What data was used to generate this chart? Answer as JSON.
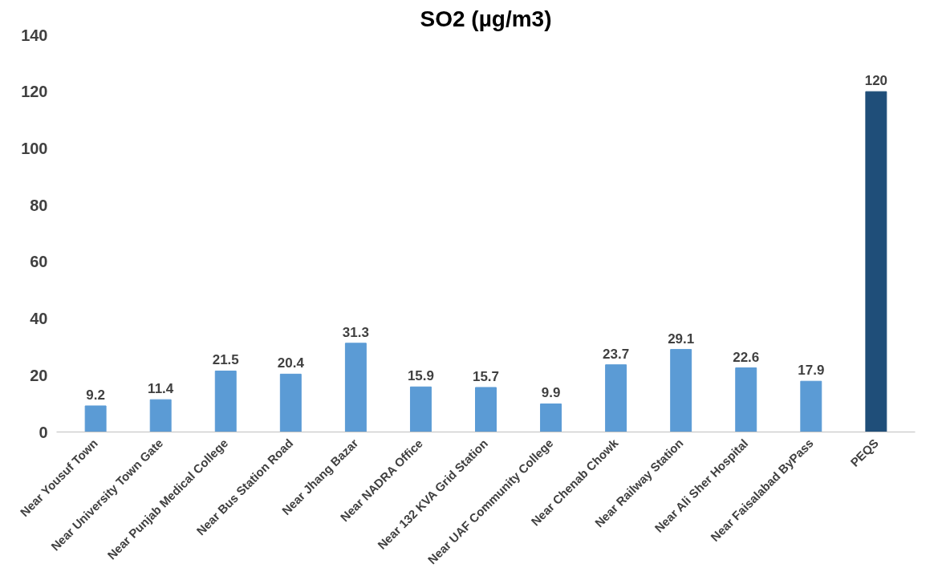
{
  "chart_data": {
    "type": "bar",
    "title": "SO2 (µg/m3)",
    "categories": [
      "Near Yousuf Town",
      "Near University Town Gate",
      "Near Punjab Medical College",
      "Near Bus Station Road",
      "Near Jhang Bazar",
      "Near NADRA Office",
      "Near 132 KVA Grid Station",
      "Near UAF Community College",
      "Near Chenab Chowk",
      "Near Railway Station",
      "Near Ali Sher Hospital",
      "Near Faisalabad ByPass",
      "PEQS"
    ],
    "values": [
      9.2,
      11.4,
      21.5,
      20.4,
      31.3,
      15.9,
      15.7,
      9.9,
      23.7,
      29.1,
      22.6,
      17.9,
      120
    ],
    "colors": [
      "#5b9bd5",
      "#5b9bd5",
      "#5b9bd5",
      "#5b9bd5",
      "#5b9bd5",
      "#5b9bd5",
      "#5b9bd5",
      "#5b9bd5",
      "#5b9bd5",
      "#5b9bd5",
      "#5b9bd5",
      "#5b9bd5",
      "#1f4e79"
    ],
    "ylim": [
      0,
      140
    ],
    "yticks": [
      0,
      20,
      40,
      60,
      80,
      100,
      120,
      140
    ],
    "data_labels": true,
    "grid": false
  }
}
